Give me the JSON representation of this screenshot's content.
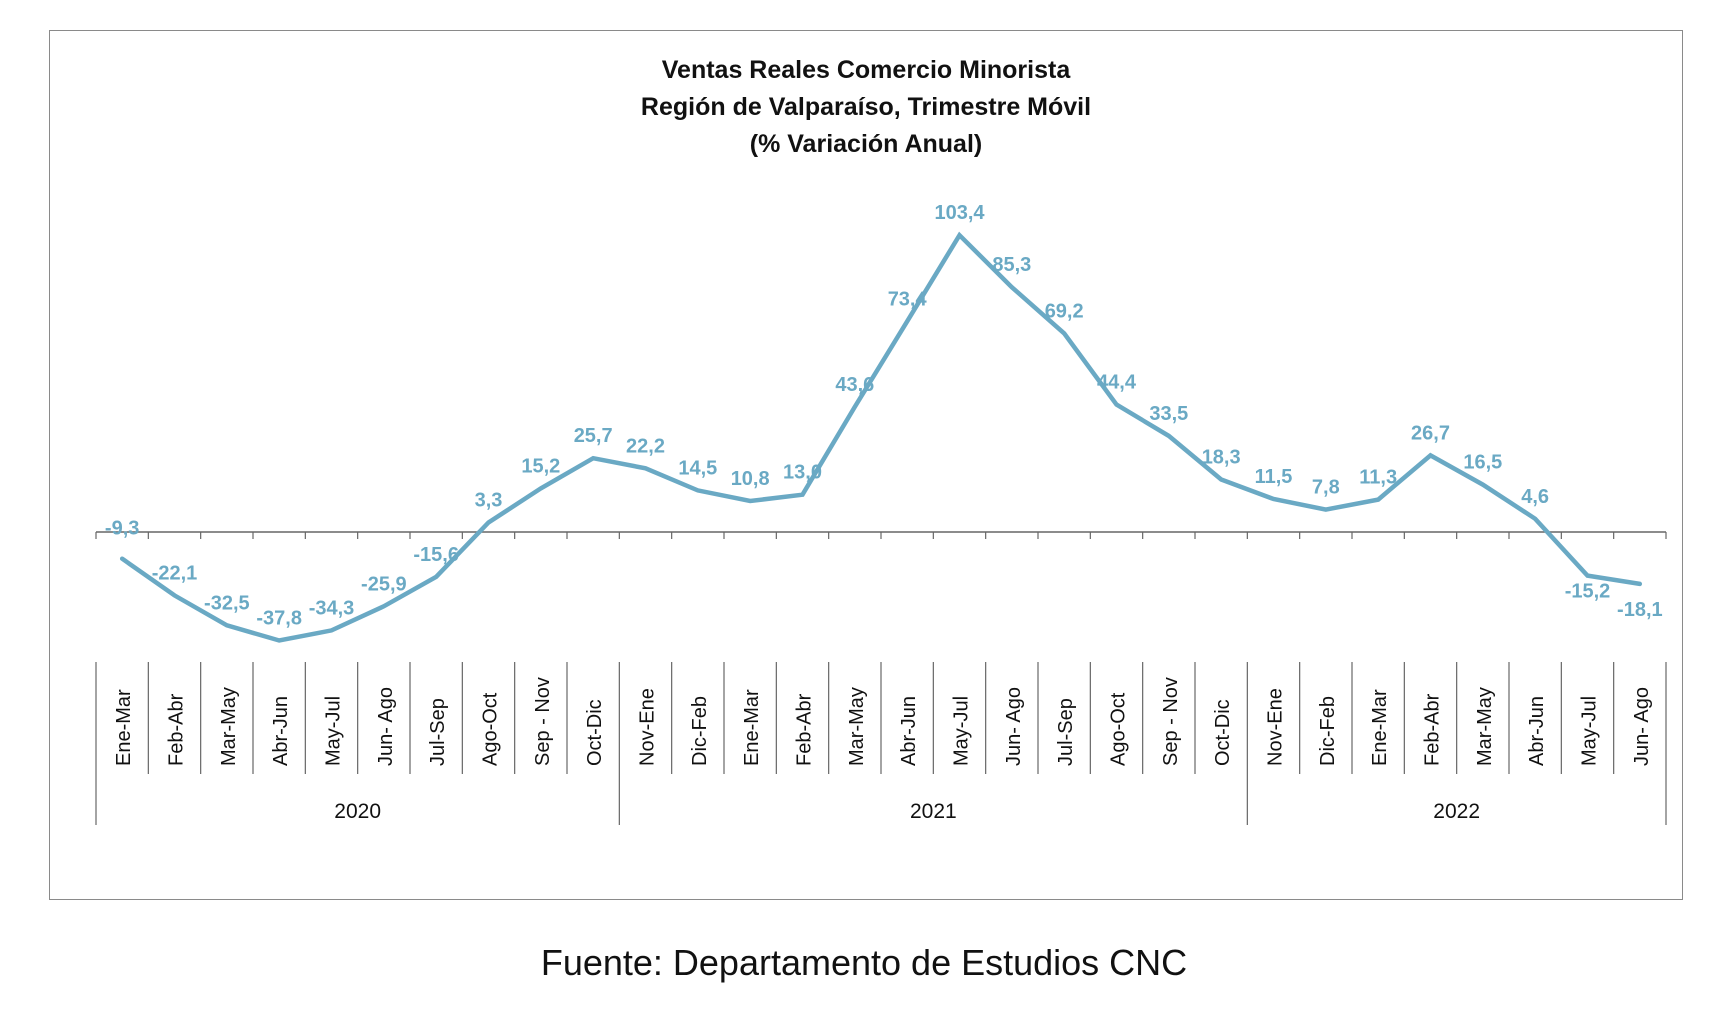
{
  "title_lines": [
    "Ventas Reales Comercio Minorista",
    "Región de Valparaíso, Trimestre Móvil",
    "(% Variación Anual)"
  ],
  "source": "Fuente: Departamento de Estudios CNC",
  "colors": {
    "line": "#6aa9c4",
    "label": "#6aa9c4",
    "axis": "#666666"
  },
  "chart_data": {
    "type": "line",
    "title": "Ventas Reales Comercio Minorista Región de Valparaíso, Trimestre Móvil (% Variación Anual)",
    "categories": [
      "Ene-Mar",
      "Feb-Abr",
      "Mar-May",
      "Abr-Jun",
      "May-Jul",
      "Jun- Ago",
      "Jul-Sep",
      "Ago-Oct",
      "Sep - Nov",
      "Oct-Dic",
      "Nov-Ene",
      "Dic-Feb",
      "Ene-Mar",
      "Feb-Abr",
      "Mar-May",
      "Abr-Jun",
      "May-Jul",
      "Jun- Ago",
      "Jul-Sep",
      "Ago-Oct",
      "Sep - Nov",
      "Oct-Dic",
      "Nov-Ene",
      "Dic-Feb",
      "Ene-Mar",
      "Feb-Abr",
      "Mar-May",
      "Abr-Jun",
      "May-Jul",
      "Jun- Ago"
    ],
    "values": [
      -9.3,
      -22.1,
      -32.5,
      -37.8,
      -34.3,
      -25.9,
      -15.6,
      3.3,
      15.2,
      25.7,
      22.2,
      14.5,
      10.8,
      13.0,
      43.6,
      73.4,
      103.4,
      85.3,
      69.2,
      44.4,
      33.5,
      18.3,
      11.5,
      7.8,
      11.3,
      26.7,
      16.5,
      4.6,
      -15.2,
      -18.1
    ],
    "data_labels": [
      "-9,3",
      "-22,1",
      "-32,5",
      "-37,8",
      "-34,3",
      "-25,9",
      "-15,6",
      "3,3",
      "15,2",
      "25,7",
      "22,2",
      "14,5",
      "10,8",
      "13,0",
      "43,6",
      "73,4",
      "103,4",
      "85,3",
      "69,2",
      "44,4",
      "33,5",
      "18,3",
      "11,5",
      "7,8",
      "11,3",
      "26,7",
      "16,5",
      "4,6",
      "-15,2",
      "-18,1"
    ],
    "year_groups": [
      {
        "label": "2020",
        "start": 0,
        "end": 9
      },
      {
        "label": "2021",
        "start": 10,
        "end": 21
      },
      {
        "label": "2022",
        "start": 22,
        "end": 29
      }
    ],
    "xlabel": "",
    "ylabel": "",
    "ylim": [
      -45,
      125
    ],
    "grid": false,
    "legend": "none"
  }
}
